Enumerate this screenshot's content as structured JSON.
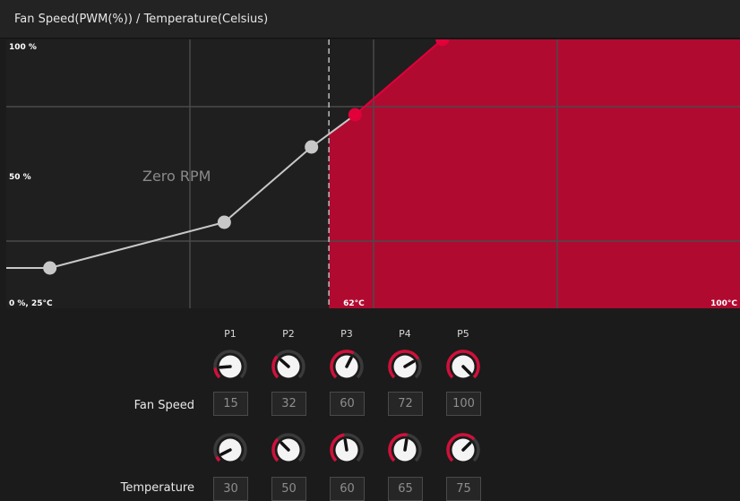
{
  "header": {
    "title": "Fan Speed(PWM(%)) / Temperature(Celsius)"
  },
  "chart_data": {
    "type": "line",
    "title": "Fan Speed(PWM(%)) / Temperature(Celsius)",
    "xlim": [
      25,
      100
    ],
    "ylim": [
      0,
      100
    ],
    "x_tick_labels": {
      "start": "0 %, 25°C",
      "marker": "62°C",
      "end": "100°C"
    },
    "y_tick_labels": [
      "100 %",
      "50 %"
    ],
    "marker_temperature": 62,
    "zero_rpm_label": "Zero RPM",
    "points": [
      {
        "name": "P1",
        "x": 30,
        "y": 15
      },
      {
        "name": "P2",
        "x": 50,
        "y": 32
      },
      {
        "name": "P3",
        "x": 60,
        "y": 60
      },
      {
        "name": "P4",
        "x": 65,
        "y": 72
      },
      {
        "name": "P5",
        "x": 75,
        "y": 100
      }
    ],
    "grid": true,
    "colors": {
      "active": "#b00a30",
      "point_active": "#e2003a",
      "inactive": "#c8c8c8"
    }
  },
  "controls": {
    "point_labels": [
      "P1",
      "P2",
      "P3",
      "P4",
      "P5"
    ],
    "fan_speed": {
      "label": "Fan Speed",
      "values": [
        "15",
        "32",
        "60",
        "72",
        "100"
      ]
    },
    "temperature": {
      "label": "Temperature",
      "values": [
        "30",
        "50",
        "60",
        "65",
        "75"
      ]
    }
  }
}
